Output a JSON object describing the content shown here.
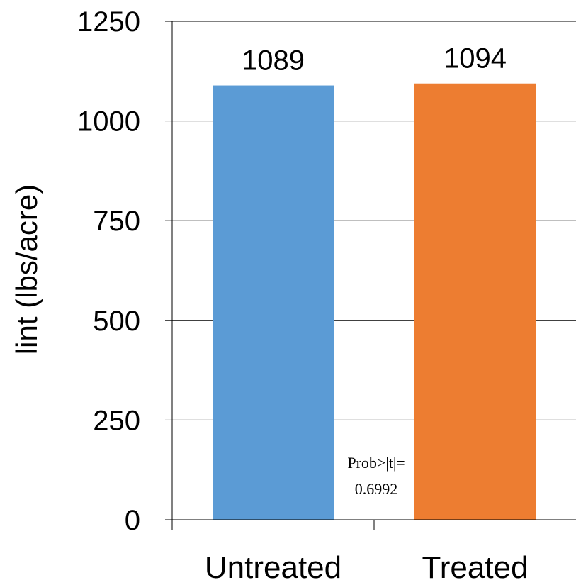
{
  "chart_data": {
    "type": "bar",
    "categories": [
      "Untreated",
      "Treated"
    ],
    "values": [
      1089,
      1094
    ],
    "data_labels": [
      "1089",
      "1094"
    ],
    "ylabel": "lint (lbs/acre)",
    "xlabel": "",
    "title": "",
    "ylim": [
      0,
      1250
    ],
    "yticks": [
      0,
      250,
      500,
      750,
      1000,
      1250
    ],
    "grid": true,
    "legend": "none",
    "colors": [
      "#5b9bd5",
      "#ed7d31"
    ],
    "annotation": {
      "line1": "Prob>|t|=",
      "line2": "0.6992"
    }
  }
}
